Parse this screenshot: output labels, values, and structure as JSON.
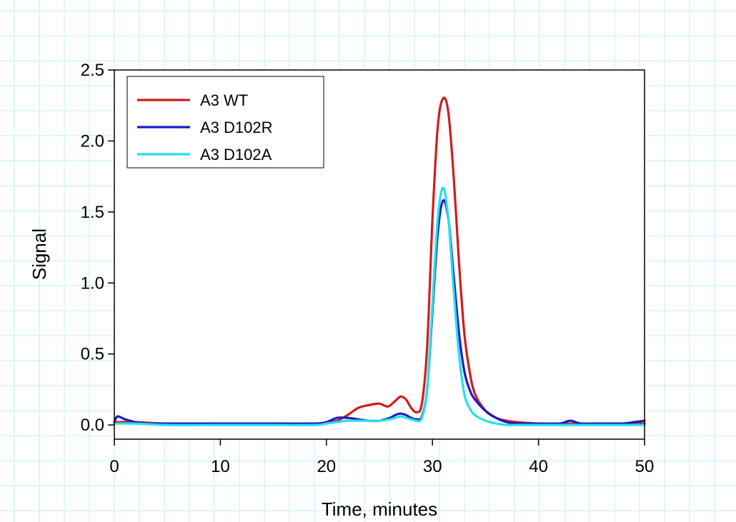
{
  "chart_data": {
    "type": "line",
    "title": "",
    "xlabel": "Time, minutes",
    "ylabel": "Signal",
    "xlim": [
      0,
      50
    ],
    "ylim": [
      -0.1,
      2.5
    ],
    "xticks": [
      0,
      10,
      20,
      30,
      40,
      50
    ],
    "yticks": [
      0.0,
      0.5,
      1.0,
      1.5,
      2.0,
      2.5
    ],
    "xtick_labels": [
      "0",
      "10",
      "20",
      "30",
      "40",
      "50"
    ],
    "ytick_labels": [
      "0.0",
      "0.5",
      "1.0",
      "1.5",
      "2.0",
      "2.5"
    ],
    "grid": false,
    "legend_position": "top-left",
    "series": [
      {
        "name": "A3 WT",
        "color": "#d01c1c",
        "x": [
          0,
          2,
          5,
          10,
          15,
          19,
          20,
          21,
          22,
          23,
          24,
          25,
          25.8,
          26.5,
          27,
          27.5,
          28,
          28.5,
          29,
          29.5,
          30,
          30.5,
          31,
          31.5,
          32,
          32.5,
          33,
          33.5,
          34,
          35,
          36,
          37,
          38,
          40,
          42,
          45,
          48,
          50
        ],
        "y": [
          0.02,
          0.02,
          0.01,
          0.01,
          0.01,
          0.01,
          0.02,
          0.03,
          0.07,
          0.12,
          0.14,
          0.15,
          0.13,
          0.17,
          0.2,
          0.18,
          0.12,
          0.09,
          0.15,
          0.55,
          1.45,
          2.1,
          2.3,
          2.2,
          1.75,
          1.15,
          0.65,
          0.38,
          0.22,
          0.1,
          0.05,
          0.03,
          0.02,
          0.01,
          0.01,
          0.01,
          0.01,
          0.01
        ]
      },
      {
        "name": "A3 D102R",
        "color": "#1a1acc",
        "x": [
          0,
          0.3,
          1,
          2,
          3,
          5,
          10,
          15,
          19,
          20,
          21,
          22,
          23,
          24,
          25,
          26,
          26.5,
          27,
          27.5,
          28,
          28.5,
          29,
          29.5,
          30,
          30.5,
          31,
          31.5,
          32,
          32.5,
          33,
          33.5,
          34,
          35,
          36,
          37,
          38,
          40,
          42,
          43,
          44,
          46,
          48,
          49,
          50
        ],
        "y": [
          0.02,
          0.06,
          0.04,
          0.02,
          0.01,
          0.01,
          0.01,
          0.01,
          0.01,
          0.02,
          0.05,
          0.05,
          0.04,
          0.03,
          0.03,
          0.05,
          0.07,
          0.08,
          0.07,
          0.05,
          0.04,
          0.06,
          0.25,
          0.8,
          1.35,
          1.58,
          1.45,
          1.05,
          0.65,
          0.38,
          0.25,
          0.18,
          0.1,
          0.05,
          0.02,
          0.01,
          0.01,
          0.01,
          0.03,
          0.01,
          0.01,
          0.01,
          0.02,
          0.03
        ]
      },
      {
        "name": "A3 D102A",
        "color": "#24e0ea",
        "x": [
          0,
          2,
          5,
          10,
          15,
          19,
          20,
          21,
          22,
          23,
          24,
          25,
          26,
          27,
          27.5,
          28,
          28.5,
          29,
          29.5,
          30,
          30.5,
          31,
          31.5,
          32,
          32.5,
          33,
          33.5,
          34,
          35,
          36,
          37,
          38,
          40,
          45,
          50
        ],
        "y": [
          0.01,
          0.01,
          0.0,
          0.0,
          0.0,
          0.0,
          0.01,
          0.02,
          0.03,
          0.03,
          0.03,
          0.03,
          0.04,
          0.06,
          0.05,
          0.04,
          0.03,
          0.05,
          0.25,
          0.85,
          1.45,
          1.67,
          1.45,
          0.95,
          0.5,
          0.22,
          0.12,
          0.07,
          0.03,
          0.01,
          0.0,
          0.0,
          0.0,
          0.0,
          0.0
        ]
      }
    ]
  }
}
